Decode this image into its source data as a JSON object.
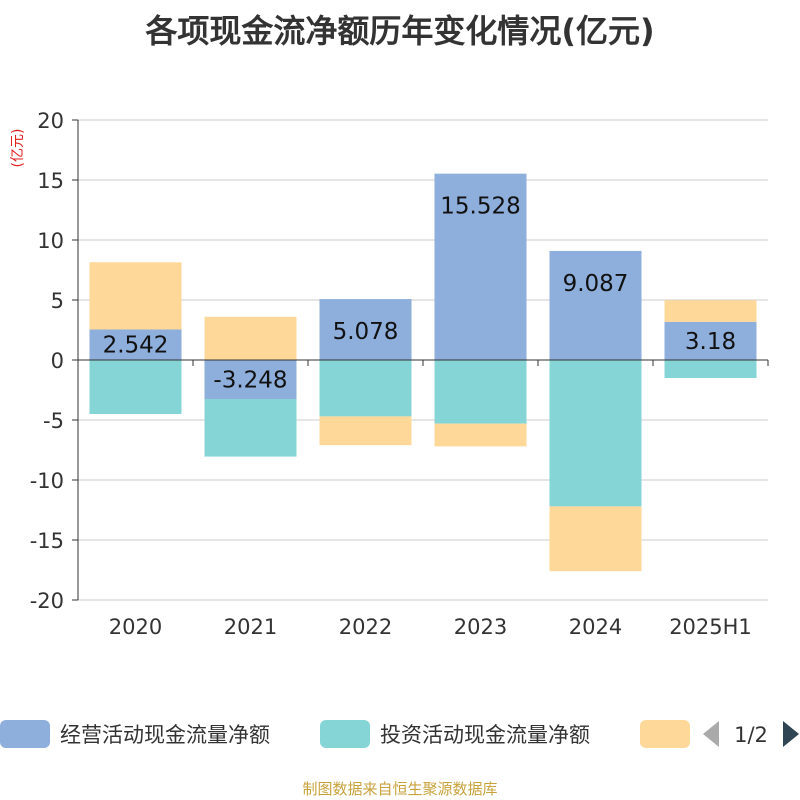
{
  "chart_data": {
    "type": "bar",
    "stacked": true,
    "title": "各项现金流净额历年变化情况(亿元)",
    "ylabel": "(亿元)",
    "categories": [
      "2020",
      "2021",
      "2022",
      "2023",
      "2024",
      "2025H1"
    ],
    "ylim": [
      -20,
      20
    ],
    "yticks": [
      20,
      15,
      10,
      5,
      0,
      -5,
      -10,
      -15,
      -20
    ],
    "grid": true,
    "series": [
      {
        "name": "经营活动现金流量净额",
        "color": "#8eaedb",
        "values": [
          2.542,
          -3.248,
          5.078,
          15.528,
          9.087,
          3.18
        ],
        "show_labels": true
      },
      {
        "name": "投资活动现金流量净额",
        "color": "#85d4d6",
        "values": [
          -4.5,
          -4.8,
          -4.7,
          -5.3,
          -12.2,
          -1.5
        ],
        "show_labels": false
      },
      {
        "name": "",
        "color": "#fed899",
        "values": [
          5.6,
          3.6,
          -2.4,
          -1.9,
          -5.4,
          1.8
        ],
        "show_labels": false
      }
    ],
    "data_labels": [
      "2.542",
      "-3.248",
      "5.078",
      "15.528",
      "9.087",
      "3.18"
    ],
    "legend": {
      "position": "bottom",
      "page": "1/2"
    }
  },
  "footer": {
    "source": "制图数据来自恒生聚源数据库"
  }
}
